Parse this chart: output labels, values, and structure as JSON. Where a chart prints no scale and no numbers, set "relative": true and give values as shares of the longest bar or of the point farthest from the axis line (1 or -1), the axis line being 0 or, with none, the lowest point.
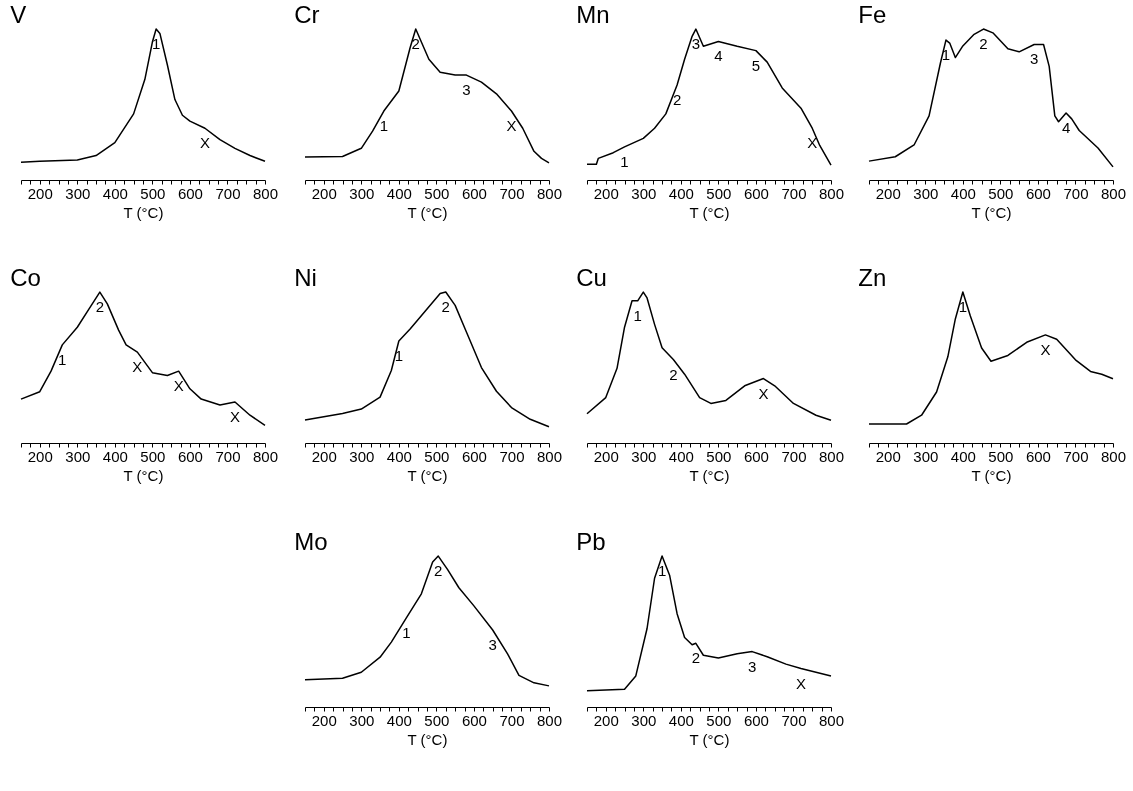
{
  "chart_data": [
    {
      "type": "line",
      "title": "V",
      "xlabel": "T (°C)",
      "relative": true,
      "xlim": [
        150,
        800
      ],
      "xticks": [
        {
          "value": 150,
          "label": null
        },
        {
          "value": 175,
          "label": null
        },
        200,
        {
          "value": 225,
          "label": null
        },
        {
          "value": 250,
          "label": null
        },
        {
          "value": 275,
          "label": null
        },
        300,
        {
          "value": 325,
          "label": null
        },
        {
          "value": 350,
          "label": null
        },
        {
          "value": 375,
          "label": null
        },
        400,
        {
          "value": 425,
          "label": null
        },
        {
          "value": 450,
          "label": null
        },
        {
          "value": 475,
          "label": null
        },
        500,
        {
          "value": 525,
          "label": null
        },
        {
          "value": 550,
          "label": null
        },
        {
          "value": 575,
          "label": null
        },
        600,
        {
          "value": 625,
          "label": null
        },
        {
          "value": 650,
          "label": null
        },
        {
          "value": 675,
          "label": null
        },
        700,
        {
          "value": 725,
          "label": null
        },
        {
          "value": 750,
          "label": null
        },
        {
          "value": 775,
          "label": null
        },
        800
      ],
      "x": [
        150,
        200,
        300,
        350,
        400,
        450,
        480,
        500,
        510,
        520,
        540,
        560,
        580,
        600,
        640,
        680,
        720,
        760,
        800
      ],
      "values": [
        0.118,
        0.124,
        0.133,
        0.162,
        0.248,
        0.438,
        0.667,
        0.914,
        1.0,
        0.971,
        0.762,
        0.533,
        0.429,
        0.39,
        0.343,
        0.267,
        0.21,
        0.162,
        0.124
      ],
      "annotations": [
        {
          "text": "1",
          "x": 510,
          "y": 1.0
        },
        {
          "text": "X",
          "x": 640,
          "y": 0.343
        }
      ]
    },
    {
      "type": "line",
      "title": "Cr",
      "xlabel": "T (°C)",
      "relative": true,
      "xlim": [
        150,
        800
      ],
      "xticks": [
        {
          "value": 150,
          "label": null
        },
        {
          "value": 175,
          "label": null
        },
        200,
        {
          "value": 225,
          "label": null
        },
        {
          "value": 250,
          "label": null
        },
        {
          "value": 275,
          "label": null
        },
        300,
        {
          "value": 325,
          "label": null
        },
        {
          "value": 350,
          "label": null
        },
        {
          "value": 375,
          "label": null
        },
        400,
        {
          "value": 425,
          "label": null
        },
        {
          "value": 450,
          "label": null
        },
        {
          "value": 475,
          "label": null
        },
        500,
        {
          "value": 525,
          "label": null
        },
        {
          "value": 550,
          "label": null
        },
        {
          "value": 575,
          "label": null
        },
        600,
        {
          "value": 625,
          "label": null
        },
        {
          "value": 650,
          "label": null
        },
        {
          "value": 675,
          "label": null
        },
        700,
        {
          "value": 725,
          "label": null
        },
        {
          "value": 750,
          "label": null
        },
        {
          "value": 775,
          "label": null
        },
        800
      ],
      "x": [
        150,
        250,
        300,
        330,
        360,
        400,
        430,
        445,
        460,
        480,
        510,
        550,
        580,
        620,
        660,
        700,
        730,
        760,
        780,
        800
      ],
      "values": [
        0.152,
        0.156,
        0.21,
        0.324,
        0.457,
        0.59,
        0.876,
        1.0,
        0.914,
        0.8,
        0.714,
        0.695,
        0.695,
        0.648,
        0.571,
        0.457,
        0.343,
        0.19,
        0.143,
        0.114
      ],
      "annotations": [
        {
          "text": "1",
          "x": 360,
          "y": 0.457
        },
        {
          "text": "2",
          "x": 445,
          "y": 1.0
        },
        {
          "text": "3",
          "x": 580,
          "y": 0.695
        },
        {
          "text": "X",
          "x": 700,
          "y": 0.457
        }
      ]
    },
    {
      "type": "line",
      "title": "Mn",
      "xlabel": "T (°C)",
      "relative": true,
      "xlim": [
        150,
        800
      ],
      "xticks": [
        {
          "value": 150,
          "label": null
        },
        {
          "value": 175,
          "label": null
        },
        200,
        {
          "value": 225,
          "label": null
        },
        {
          "value": 250,
          "label": null
        },
        {
          "value": 275,
          "label": null
        },
        300,
        {
          "value": 325,
          "label": null
        },
        {
          "value": 350,
          "label": null
        },
        {
          "value": 375,
          "label": null
        },
        400,
        {
          "value": 425,
          "label": null
        },
        {
          "value": 450,
          "label": null
        },
        {
          "value": 475,
          "label": null
        },
        500,
        {
          "value": 525,
          "label": null
        },
        {
          "value": 550,
          "label": null
        },
        {
          "value": 575,
          "label": null
        },
        600,
        {
          "value": 625,
          "label": null
        },
        {
          "value": 650,
          "label": null
        },
        {
          "value": 675,
          "label": null
        },
        700,
        {
          "value": 725,
          "label": null
        },
        {
          "value": 750,
          "label": null
        },
        {
          "value": 775,
          "label": null
        },
        800
      ],
      "x": [
        150,
        175,
        180,
        220,
        250,
        300,
        330,
        360,
        390,
        410,
        430,
        440,
        460,
        500,
        550,
        600,
        630,
        670,
        720,
        750,
        770,
        800
      ],
      "values": [
        0.105,
        0.105,
        0.143,
        0.181,
        0.219,
        0.276,
        0.343,
        0.438,
        0.629,
        0.8,
        0.952,
        1.0,
        0.886,
        0.918,
        0.886,
        0.857,
        0.781,
        0.61,
        0.476,
        0.343,
        0.229,
        0.099
      ],
      "annotations": [
        {
          "text": "1",
          "x": 250,
          "y": 0.219
        },
        {
          "text": "2",
          "x": 390,
          "y": 0.629
        },
        {
          "text": "3",
          "x": 440,
          "y": 1.0
        },
        {
          "text": "4",
          "x": 500,
          "y": 0.918
        },
        {
          "text": "5",
          "x": 600,
          "y": 0.857
        },
        {
          "text": "X",
          "x": 750,
          "y": 0.343
        }
      ]
    },
    {
      "type": "line",
      "title": "Fe",
      "xlabel": "T (°C)",
      "relative": true,
      "xlim": [
        150,
        800
      ],
      "xticks": [
        {
          "value": 150,
          "label": null
        },
        {
          "value": 175,
          "label": null
        },
        200,
        {
          "value": 225,
          "label": null
        },
        {
          "value": 250,
          "label": null
        },
        {
          "value": 275,
          "label": null
        },
        300,
        {
          "value": 325,
          "label": null
        },
        {
          "value": 350,
          "label": null
        },
        {
          "value": 375,
          "label": null
        },
        400,
        {
          "value": 425,
          "label": null
        },
        {
          "value": 450,
          "label": null
        },
        {
          "value": 475,
          "label": null
        },
        500,
        {
          "value": 525,
          "label": null
        },
        {
          "value": 550,
          "label": null
        },
        {
          "value": 575,
          "label": null
        },
        600,
        {
          "value": 625,
          "label": null
        },
        {
          "value": 650,
          "label": null
        },
        {
          "value": 675,
          "label": null
        },
        700,
        {
          "value": 725,
          "label": null
        },
        {
          "value": 750,
          "label": null
        },
        {
          "value": 775,
          "label": null
        },
        800
      ],
      "x": [
        150,
        220,
        270,
        310,
        340,
        355,
        365,
        380,
        400,
        430,
        455,
        480,
        520,
        550,
        590,
        615,
        630,
        645,
        655,
        675,
        690,
        710,
        760,
        800
      ],
      "values": [
        0.125,
        0.154,
        0.232,
        0.425,
        0.772,
        0.927,
        0.907,
        0.811,
        0.888,
        0.965,
        1.0,
        0.975,
        0.869,
        0.849,
        0.898,
        0.898,
        0.753,
        0.425,
        0.386,
        0.444,
        0.405,
        0.328,
        0.212,
        0.087
      ],
      "annotations": [
        {
          "text": "1",
          "x": 355,
          "y": 0.927
        },
        {
          "text": "2",
          "x": 455,
          "y": 1.0
        },
        {
          "text": "3",
          "x": 590,
          "y": 0.898
        },
        {
          "text": "4",
          "x": 675,
          "y": 0.444
        }
      ]
    },
    {
      "type": "line",
      "title": "Co",
      "xlabel": "T (°C)",
      "relative": true,
      "xlim": [
        150,
        800
      ],
      "xticks": [
        {
          "value": 150,
          "label": null
        },
        {
          "value": 175,
          "label": null
        },
        200,
        {
          "value": 225,
          "label": null
        },
        {
          "value": 250,
          "label": null
        },
        {
          "value": 275,
          "label": null
        },
        300,
        {
          "value": 325,
          "label": null
        },
        {
          "value": 350,
          "label": null
        },
        {
          "value": 375,
          "label": null
        },
        400,
        {
          "value": 425,
          "label": null
        },
        {
          "value": 450,
          "label": null
        },
        {
          "value": 475,
          "label": null
        },
        500,
        {
          "value": 525,
          "label": null
        },
        {
          "value": 550,
          "label": null
        },
        {
          "value": 575,
          "label": null
        },
        600,
        {
          "value": 625,
          "label": null
        },
        {
          "value": 650,
          "label": null
        },
        {
          "value": 675,
          "label": null
        },
        700,
        {
          "value": 725,
          "label": null
        },
        {
          "value": 750,
          "label": null
        },
        {
          "value": 775,
          "label": null
        },
        800
      ],
      "x": [
        150,
        200,
        230,
        260,
        300,
        330,
        360,
        380,
        410,
        430,
        460,
        480,
        500,
        540,
        570,
        600,
        630,
        680,
        720,
        760,
        800
      ],
      "values": [
        0.291,
        0.34,
        0.476,
        0.65,
        0.767,
        0.883,
        1.0,
        0.922,
        0.748,
        0.65,
        0.602,
        0.534,
        0.466,
        0.447,
        0.476,
        0.359,
        0.291,
        0.252,
        0.272,
        0.184,
        0.117
      ],
      "annotations": [
        {
          "text": "1",
          "x": 260,
          "y": 0.65
        },
        {
          "text": "2",
          "x": 360,
          "y": 1.0
        },
        {
          "text": "X",
          "x": 460,
          "y": 0.602
        },
        {
          "text": "X",
          "x": 570,
          "y": 0.476
        },
        {
          "text": "X",
          "x": 720,
          "y": 0.272
        }
      ]
    },
    {
      "type": "line",
      "title": "Ni",
      "xlabel": "T (°C)",
      "relative": true,
      "xlim": [
        150,
        800
      ],
      "xticks": [
        {
          "value": 150,
          "label": null
        },
        {
          "value": 175,
          "label": null
        },
        200,
        {
          "value": 225,
          "label": null
        },
        {
          "value": 250,
          "label": null
        },
        {
          "value": 275,
          "label": null
        },
        300,
        {
          "value": 325,
          "label": null
        },
        {
          "value": 350,
          "label": null
        },
        {
          "value": 375,
          "label": null
        },
        400,
        {
          "value": 425,
          "label": null
        },
        {
          "value": 450,
          "label": null
        },
        {
          "value": 475,
          "label": null
        },
        500,
        {
          "value": 525,
          "label": null
        },
        {
          "value": 550,
          "label": null
        },
        {
          "value": 575,
          "label": null
        },
        600,
        {
          "value": 625,
          "label": null
        },
        {
          "value": 650,
          "label": null
        },
        {
          "value": 675,
          "label": null
        },
        700,
        {
          "value": 725,
          "label": null
        },
        {
          "value": 750,
          "label": null
        },
        {
          "value": 775,
          "label": null
        },
        800
      ],
      "x": [
        150,
        250,
        300,
        350,
        380,
        400,
        430,
        470,
        510,
        525,
        550,
        580,
        620,
        660,
        700,
        750,
        800
      ],
      "values": [
        0.153,
        0.196,
        0.225,
        0.304,
        0.48,
        0.676,
        0.755,
        0.873,
        0.99,
        1.0,
        0.912,
        0.735,
        0.5,
        0.343,
        0.235,
        0.157,
        0.108
      ],
      "annotations": [
        {
          "text": "1",
          "x": 400,
          "y": 0.676
        },
        {
          "text": "2",
          "x": 525,
          "y": 1.0
        }
      ]
    },
    {
      "type": "line",
      "title": "Cu",
      "xlabel": "T (°C)",
      "relative": true,
      "xlim": [
        150,
        800
      ],
      "xticks": [
        {
          "value": 150,
          "label": null
        },
        {
          "value": 175,
          "label": null
        },
        200,
        {
          "value": 225,
          "label": null
        },
        {
          "value": 250,
          "label": null
        },
        {
          "value": 275,
          "label": null
        },
        300,
        {
          "value": 325,
          "label": null
        },
        {
          "value": 350,
          "label": null
        },
        {
          "value": 375,
          "label": null
        },
        400,
        {
          "value": 425,
          "label": null
        },
        {
          "value": 450,
          "label": null
        },
        {
          "value": 475,
          "label": null
        },
        500,
        {
          "value": 525,
          "label": null
        },
        {
          "value": 550,
          "label": null
        },
        {
          "value": 575,
          "label": null
        },
        600,
        {
          "value": 625,
          "label": null
        },
        {
          "value": 650,
          "label": null
        },
        {
          "value": 675,
          "label": null
        },
        700,
        {
          "value": 725,
          "label": null
        },
        {
          "value": 750,
          "label": null
        },
        {
          "value": 775,
          "label": null
        },
        800
      ],
      "x": [
        150,
        200,
        230,
        250,
        270,
        285,
        300,
        310,
        330,
        350,
        380,
        410,
        450,
        480,
        520,
        570,
        620,
        650,
        700,
        760,
        800
      ],
      "values": [
        0.194,
        0.301,
        0.495,
        0.767,
        0.942,
        0.942,
        1.0,
        0.961,
        0.786,
        0.631,
        0.553,
        0.456,
        0.301,
        0.262,
        0.282,
        0.379,
        0.427,
        0.379,
        0.262,
        0.184,
        0.151
      ],
      "annotations": [
        {
          "text": "1",
          "x": 285,
          "y": 0.942
        },
        {
          "text": "2",
          "x": 380,
          "y": 0.553
        },
        {
          "text": "X",
          "x": 620,
          "y": 0.427
        }
      ]
    },
    {
      "type": "line",
      "title": "Zn",
      "xlabel": "T (°C)",
      "relative": true,
      "xlim": [
        150,
        800
      ],
      "xticks": [
        {
          "value": 150,
          "label": null
        },
        {
          "value": 175,
          "label": null
        },
        200,
        {
          "value": 225,
          "label": null
        },
        {
          "value": 250,
          "label": null
        },
        {
          "value": 275,
          "label": null
        },
        300,
        {
          "value": 325,
          "label": null
        },
        {
          "value": 350,
          "label": null
        },
        {
          "value": 375,
          "label": null
        },
        400,
        {
          "value": 425,
          "label": null
        },
        {
          "value": 450,
          "label": null
        },
        {
          "value": 475,
          "label": null
        },
        500,
        {
          "value": 525,
          "label": null
        },
        {
          "value": 550,
          "label": null
        },
        {
          "value": 575,
          "label": null
        },
        600,
        {
          "value": 625,
          "label": null
        },
        {
          "value": 650,
          "label": null
        },
        {
          "value": 675,
          "label": null
        },
        700,
        {
          "value": 725,
          "label": null
        },
        {
          "value": 750,
          "label": null
        },
        {
          "value": 775,
          "label": null
        },
        800
      ],
      "x": [
        150,
        250,
        290,
        330,
        360,
        380,
        400,
        420,
        450,
        475,
        520,
        570,
        620,
        650,
        700,
        740,
        770,
        800
      ],
      "values": [
        0.126,
        0.126,
        0.184,
        0.338,
        0.571,
        0.822,
        1.0,
        0.841,
        0.629,
        0.542,
        0.58,
        0.667,
        0.716,
        0.687,
        0.551,
        0.474,
        0.455,
        0.426
      ],
      "annotations": [
        {
          "text": "1",
          "x": 400,
          "y": 1.0
        },
        {
          "text": "X",
          "x": 620,
          "y": 0.716
        }
      ]
    },
    {
      "type": "line",
      "title": "Mo",
      "xlabel": "T (°C)",
      "relative": true,
      "xlim": [
        150,
        800
      ],
      "xticks": [
        {
          "value": 150,
          "label": null
        },
        {
          "value": 175,
          "label": null
        },
        200,
        {
          "value": 225,
          "label": null
        },
        {
          "value": 250,
          "label": null
        },
        {
          "value": 275,
          "label": null
        },
        300,
        {
          "value": 325,
          "label": null
        },
        {
          "value": 350,
          "label": null
        },
        {
          "value": 375,
          "label": null
        },
        400,
        {
          "value": 425,
          "label": null
        },
        {
          "value": 450,
          "label": null
        },
        {
          "value": 475,
          "label": null
        },
        500,
        {
          "value": 525,
          "label": null
        },
        {
          "value": 550,
          "label": null
        },
        {
          "value": 575,
          "label": null
        },
        600,
        {
          "value": 625,
          "label": null
        },
        {
          "value": 650,
          "label": null
        },
        {
          "value": 675,
          "label": null
        },
        700,
        {
          "value": 725,
          "label": null
        },
        {
          "value": 750,
          "label": null
        },
        {
          "value": 775,
          "label": null
        },
        800
      ],
      "x": [
        150,
        250,
        300,
        350,
        380,
        420,
        460,
        490,
        505,
        530,
        560,
        600,
        650,
        690,
        720,
        760,
        800
      ],
      "values": [
        0.18,
        0.19,
        0.23,
        0.33,
        0.43,
        0.59,
        0.75,
        0.96,
        1.0,
        0.91,
        0.79,
        0.67,
        0.51,
        0.35,
        0.21,
        0.16,
        0.14
      ],
      "annotations": [
        {
          "text": "1",
          "x": 420,
          "y": 0.59
        },
        {
          "text": "2",
          "x": 505,
          "y": 1.0
        },
        {
          "text": "3",
          "x": 650,
          "y": 0.51
        }
      ]
    },
    {
      "type": "line",
      "title": "Pb",
      "xlabel": "T (°C)",
      "relative": true,
      "xlim": [
        150,
        800
      ],
      "xticks": [
        {
          "value": 150,
          "label": null
        },
        {
          "value": 175,
          "label": null
        },
        200,
        {
          "value": 225,
          "label": null
        },
        {
          "value": 250,
          "label": null
        },
        {
          "value": 275,
          "label": null
        },
        300,
        {
          "value": 325,
          "label": null
        },
        {
          "value": 350,
          "label": null
        },
        {
          "value": 375,
          "label": null
        },
        400,
        {
          "value": 425,
          "label": null
        },
        {
          "value": 450,
          "label": null
        },
        {
          "value": 475,
          "label": null
        },
        500,
        {
          "value": 525,
          "label": null
        },
        {
          "value": 550,
          "label": null
        },
        {
          "value": 575,
          "label": null
        },
        600,
        {
          "value": 625,
          "label": null
        },
        {
          "value": 650,
          "label": null
        },
        {
          "value": 675,
          "label": null
        },
        700,
        {
          "value": 725,
          "label": null
        },
        {
          "value": 750,
          "label": null
        },
        {
          "value": 775,
          "label": null
        },
        800
      ],
      "x": [
        150,
        250,
        280,
        310,
        330,
        350,
        370,
        390,
        410,
        430,
        440,
        460,
        500,
        550,
        590,
        630,
        680,
        720,
        800
      ],
      "values": [
        0.108,
        0.118,
        0.206,
        0.52,
        0.853,
        1.0,
        0.873,
        0.618,
        0.461,
        0.412,
        0.422,
        0.343,
        0.324,
        0.353,
        0.367,
        0.333,
        0.284,
        0.255,
        0.206
      ],
      "annotations": [
        {
          "text": "1",
          "x": 350,
          "y": 1.0
        },
        {
          "text": "2",
          "x": 440,
          "y": 0.422
        },
        {
          "text": "3",
          "x": 590,
          "y": 0.367
        },
        {
          "text": "X",
          "x": 720,
          "y": 0.255
        }
      ]
    }
  ]
}
